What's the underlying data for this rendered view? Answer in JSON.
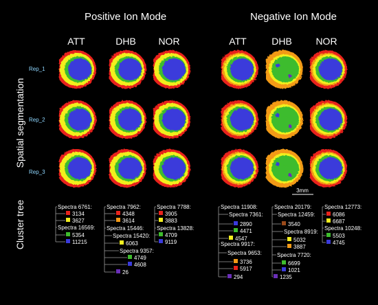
{
  "modes": [
    "Positive Ion Mode",
    "Negative Ion Mode"
  ],
  "columns": [
    "ATT",
    "DHB",
    "NOR",
    "ATT",
    "DHB",
    "NOR"
  ],
  "row_titles": {
    "spatial": "Spatial segmentation",
    "cluster": "Cluster tree"
  },
  "replicates": [
    "Rep_1",
    "Rep_2",
    "Rep_3"
  ],
  "scale_bar": "3mm",
  "colors": {
    "red": "#e8231c",
    "orange": "#f39a17",
    "yellow": "#f2ef1f",
    "green": "#3ebc2d",
    "blue": "#3a3adb",
    "purple": "#6a2fb8",
    "brown": "#9a4a1a"
  },
  "cluster_trees": [
    {
      "group": "pos-att",
      "nodes": [
        {
          "kind": "label",
          "text": "Spectra 6761:"
        },
        {
          "kind": "leaf",
          "color": "red",
          "text": "3134"
        },
        {
          "kind": "leaf",
          "color": "yellow",
          "text": "3627"
        },
        {
          "kind": "label",
          "text": "Spectra 16569:"
        },
        {
          "kind": "leaf",
          "color": "green",
          "text": "5354"
        },
        {
          "kind": "leaf",
          "color": "blue",
          "text": "11215"
        }
      ]
    },
    {
      "group": "pos-dhb",
      "nodes": [
        {
          "kind": "label",
          "text": "Spectra 7962:"
        },
        {
          "kind": "leaf",
          "color": "red",
          "text": "4348"
        },
        {
          "kind": "leaf",
          "color": "orange",
          "text": "3614"
        },
        {
          "kind": "label",
          "text": "Spectra 15446:"
        },
        {
          "kind": "label",
          "text": "Spectra 15420:"
        },
        {
          "kind": "leaf",
          "color": "yellow",
          "text": "6063"
        },
        {
          "kind": "label",
          "text": "Spectra 9357:"
        },
        {
          "kind": "leaf",
          "color": "green",
          "text": "4749"
        },
        {
          "kind": "leaf",
          "color": "blue",
          "text": "4608"
        },
        {
          "kind": "leaf",
          "color": "purple",
          "text": "26"
        }
      ]
    },
    {
      "group": "pos-nor",
      "nodes": [
        {
          "kind": "label",
          "text": "Spectra 7788:"
        },
        {
          "kind": "leaf",
          "color": "red",
          "text": "3905"
        },
        {
          "kind": "leaf",
          "color": "yellow",
          "text": "3883"
        },
        {
          "kind": "label",
          "text": "Spectra 13828:"
        },
        {
          "kind": "leaf",
          "color": "green",
          "text": "4709"
        },
        {
          "kind": "leaf",
          "color": "blue",
          "text": "9119"
        }
      ]
    },
    {
      "group": "neg-att",
      "nodes": [
        {
          "kind": "label",
          "text": "Spectra 11908:"
        },
        {
          "kind": "label",
          "text": "Spectra 7361:"
        },
        {
          "kind": "leaf",
          "color": "blue",
          "text": "2890"
        },
        {
          "kind": "leaf",
          "color": "green",
          "text": "4471"
        },
        {
          "kind": "leaf",
          "color": "yellow",
          "text": "4547"
        },
        {
          "kind": "label",
          "text": "Spectra 9917:"
        },
        {
          "kind": "label",
          "text": "Spectra 9653:"
        },
        {
          "kind": "leaf",
          "color": "orange",
          "text": "3736"
        },
        {
          "kind": "leaf",
          "color": "red",
          "text": "5917"
        },
        {
          "kind": "leaf",
          "color": "purple",
          "text": "294"
        }
      ]
    },
    {
      "group": "neg-dhb",
      "nodes": [
        {
          "kind": "label",
          "text": "Spectra 20179:"
        },
        {
          "kind": "label",
          "text": "Spectra 12459:"
        },
        {
          "kind": "leaf",
          "color": "brown",
          "text": "3540"
        },
        {
          "kind": "label",
          "text": "Spectra 8919:"
        },
        {
          "kind": "leaf",
          "color": "yellow",
          "text": "5032"
        },
        {
          "kind": "leaf",
          "color": "orange",
          "text": "3887"
        },
        {
          "kind": "label",
          "text": "Spectra 7720:"
        },
        {
          "kind": "leaf",
          "color": "green",
          "text": "6699"
        },
        {
          "kind": "leaf",
          "color": "blue",
          "text": "1021"
        },
        {
          "kind": "leaf",
          "color": "purple",
          "text": "1235"
        }
      ]
    },
    {
      "group": "neg-nor",
      "nodes": [
        {
          "kind": "label",
          "text": "Spectra 12773:"
        },
        {
          "kind": "leaf",
          "color": "red",
          "text": "6086"
        },
        {
          "kind": "leaf",
          "color": "yellow",
          "text": "6687"
        },
        {
          "kind": "label",
          "text": "Spectra 10248:"
        },
        {
          "kind": "leaf",
          "color": "green",
          "text": "5503"
        },
        {
          "kind": "leaf",
          "color": "blue",
          "text": "4745"
        }
      ]
    }
  ]
}
